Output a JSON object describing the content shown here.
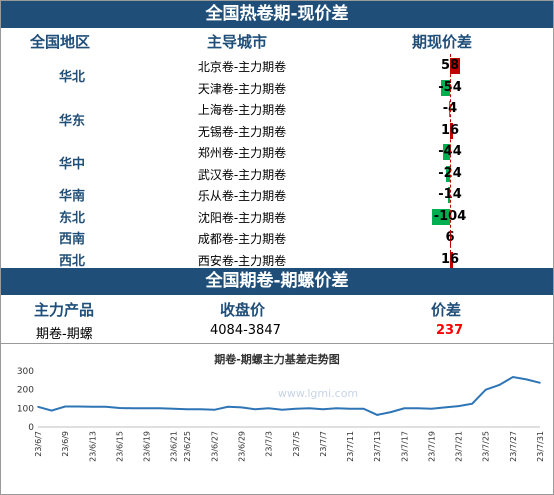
{
  "section1": {
    "title": "全国热卷期-现价差",
    "headers": {
      "region": "全国地区",
      "city": "主导城市",
      "spread": "期现价差"
    },
    "regions": [
      "华北",
      "华东",
      "华中",
      "华南",
      "东北",
      "西南",
      "西北"
    ],
    "rows": [
      {
        "city": "北京卷-主力期卷",
        "value": "58",
        "num": 58
      },
      {
        "city": "天津卷-主力期卷",
        "value": "-54",
        "num": -54
      },
      {
        "city": "上海卷-主力期卷",
        "value": "-4",
        "num": -4
      },
      {
        "city": "无锡卷-主力期卷",
        "value": "16",
        "num": 16
      },
      {
        "city": "郑州卷-主力期卷",
        "value": "-44",
        "num": -44
      },
      {
        "city": "武汉卷-主力期卷",
        "value": "-24",
        "num": -24
      },
      {
        "city": "乐从卷-主力期卷",
        "value": "-14",
        "num": -14
      },
      {
        "city": "沈阳卷-主力期卷",
        "value": "-104",
        "num": -104
      },
      {
        "city": "成都卷-主力期卷",
        "value": "6",
        "num": 6
      },
      {
        "city": "西安卷-主力期卷",
        "value": "16",
        "num": 16
      }
    ],
    "colors": {
      "positive": "#c00000",
      "negative": "#00b050"
    }
  },
  "section2": {
    "title": "全国期卷-期螺价差",
    "headers": {
      "product": "主力产品",
      "close": "收盘价",
      "spread": "价差"
    },
    "row": {
      "product": "期卷-期螺",
      "close": "4084-3847",
      "spread": "237"
    },
    "spread_color": "#ff0000"
  },
  "chart_data": {
    "type": "line",
    "title": "期卷-期螺主力基差走势图",
    "watermark": "www.lgmi.com",
    "ylim": [
      0,
      300
    ],
    "yticks": [
      0,
      100,
      200,
      300
    ],
    "x": [
      "23/6/7",
      "23/6/8",
      "23/6/9",
      "23/6/12",
      "23/6/13",
      "23/6/14",
      "23/6/15",
      "23/6/16",
      "23/6/19",
      "23/6/20",
      "23/6/21",
      "23/6/25",
      "23/6/26",
      "23/6/27",
      "23/6/28",
      "23/6/29",
      "23/6/30",
      "23/7/3",
      "23/7/4",
      "23/7/5",
      "23/7/6",
      "23/7/7",
      "23/7/10",
      "23/7/11",
      "23/7/12",
      "23/7/13",
      "23/7/14",
      "23/7/17",
      "23/7/18",
      "23/7/19",
      "23/7/20",
      "23/7/21",
      "23/7/24",
      "23/7/25",
      "23/7/26",
      "23/7/27",
      "23/7/28",
      "23/7/31"
    ],
    "xticklabels": [
      "23/6/7",
      "23/6/9",
      "23/6/13",
      "23/6/15",
      "23/6/19",
      "23/6/21",
      "23/6/25",
      "23/6/27",
      "23/6/29",
      "23/7/3",
      "23/7/5",
      "23/7/7",
      "23/7/11",
      "23/7/13",
      "23/7/17",
      "23/7/19",
      "23/7/21",
      "23/7/25",
      "23/7/27",
      "23/7/29",
      "23/7/31"
    ],
    "values": [
      108,
      88,
      110,
      110,
      108,
      108,
      102,
      100,
      100,
      100,
      98,
      95,
      95,
      92,
      108,
      105,
      95,
      100,
      92,
      98,
      100,
      95,
      100,
      98,
      98,
      65,
      80,
      100,
      100,
      98,
      105,
      112,
      125,
      200,
      225,
      268,
      255,
      237
    ],
    "line_color": "#2e75b6"
  }
}
